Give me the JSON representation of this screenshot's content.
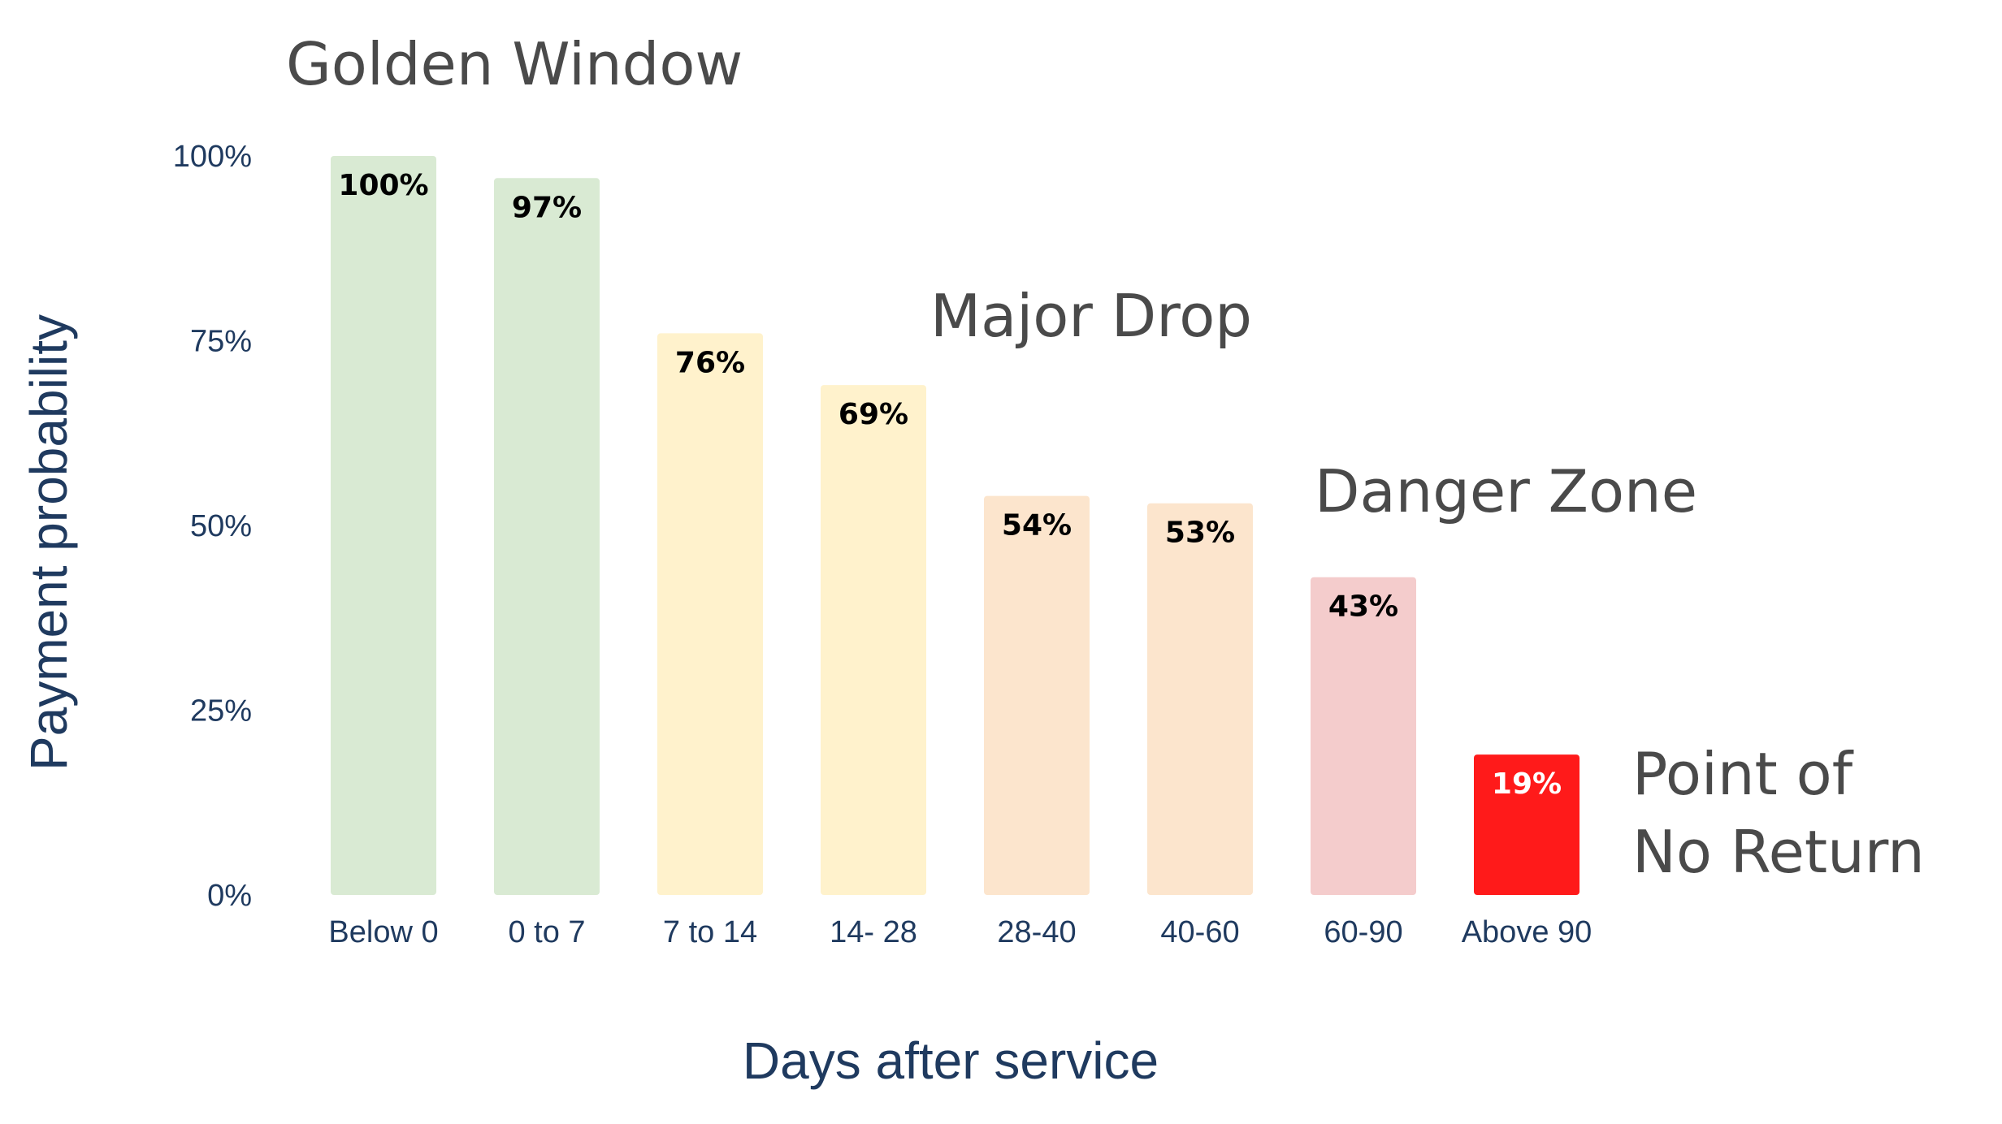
{
  "chart_data": {
    "type": "bar",
    "title": "",
    "xlabel": "Days after service",
    "ylabel": "Payment probability",
    "ylim": [
      0,
      100
    ],
    "y_ticks": [
      {
        "value": 0,
        "label": "0%"
      },
      {
        "value": 25,
        "label": "25%"
      },
      {
        "value": 50,
        "label": "50%"
      },
      {
        "value": 75,
        "label": "75%"
      },
      {
        "value": 100,
        "label": "100%"
      }
    ],
    "grid": false,
    "categories": [
      "Below 0",
      "0 to 7",
      "7 to 14",
      "14- 28",
      "28-40",
      "40-60",
      "60-90",
      "Above 90"
    ],
    "values": [
      100,
      97,
      76,
      69,
      54,
      53,
      43,
      19
    ],
    "value_labels": [
      "100%",
      "97%",
      "76%",
      "69%",
      "54%",
      "53%",
      "43%",
      "19%"
    ],
    "bar_colors": [
      "#d9ead3",
      "#d9ead3",
      "#fff2cc",
      "#fff2cc",
      "#fce5cd",
      "#fce5cd",
      "#f4cccc",
      "#ff1a1a"
    ],
    "label_colors": [
      "#000000",
      "#000000",
      "#000000",
      "#000000",
      "#000000",
      "#000000",
      "#000000",
      "#ffffff"
    ],
    "annotations": [
      {
        "lines": [
          "Golden Window"
        ],
        "anchor_category": 0
      },
      {
        "lines": [
          "Major Drop"
        ],
        "anchor_category": 3
      },
      {
        "lines": [
          "Danger Zone"
        ],
        "anchor_category": 6
      },
      {
        "lines": [
          "Point of",
          "No Return"
        ],
        "anchor_category": 7
      }
    ]
  }
}
